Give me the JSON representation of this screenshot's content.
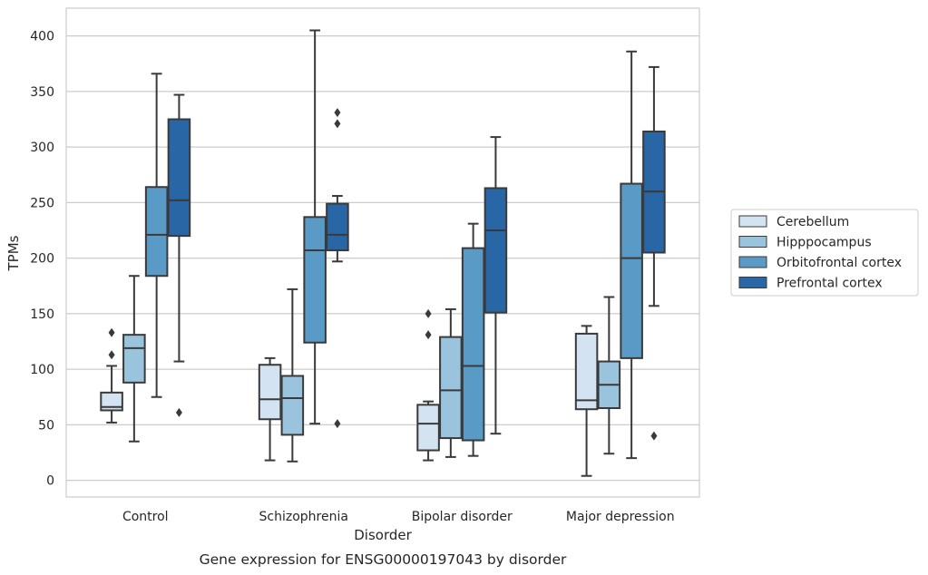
{
  "chart_data": {
    "type": "box",
    "xlabel": "Disorder",
    "ylabel": "TPMs",
    "caption": "Gene expression for ENSG00000197043 by disorder",
    "ylim": [
      -15,
      425
    ],
    "yticks": [
      0,
      50,
      100,
      150,
      200,
      250,
      300,
      350,
      400
    ],
    "grid": "horizontal",
    "legend_position": "right",
    "categories": [
      "Control",
      "Schizophrenia",
      "Bipolar disorder",
      "Major depression"
    ],
    "series": [
      {
        "name": "Cerebellum",
        "color": "#d3e3f1",
        "boxes": [
          {
            "whisker_low": 52,
            "q1": 63,
            "median": 66,
            "q3": 79,
            "whisker_high": 103,
            "outliers": [
              113,
              133
            ]
          },
          {
            "whisker_low": 18,
            "q1": 55,
            "median": 73,
            "q3": 104,
            "whisker_high": 110,
            "outliers": []
          },
          {
            "whisker_low": 18,
            "q1": 27,
            "median": 51,
            "q3": 68,
            "whisker_high": 71,
            "outliers": [
              131,
              150
            ]
          },
          {
            "whisker_low": 4,
            "q1": 64,
            "median": 72,
            "q3": 132,
            "whisker_high": 139,
            "outliers": []
          }
        ]
      },
      {
        "name": "Hipppocampus",
        "color": "#9ac3de",
        "boxes": [
          {
            "whisker_low": 35,
            "q1": 88,
            "median": 119,
            "q3": 131,
            "whisker_high": 184,
            "outliers": []
          },
          {
            "whisker_low": 17,
            "q1": 41,
            "median": 74,
            "q3": 94,
            "whisker_high": 172,
            "outliers": []
          },
          {
            "whisker_low": 21,
            "q1": 38,
            "median": 81,
            "q3": 129,
            "whisker_high": 154,
            "outliers": []
          },
          {
            "whisker_low": 24,
            "q1": 65,
            "median": 86,
            "q3": 107,
            "whisker_high": 165,
            "outliers": []
          }
        ]
      },
      {
        "name": "Orbitofrontal cortex",
        "color": "#5a9ac7",
        "boxes": [
          {
            "whisker_low": 75,
            "q1": 184,
            "median": 221,
            "q3": 264,
            "whisker_high": 366,
            "outliers": []
          },
          {
            "whisker_low": 51,
            "q1": 124,
            "median": 207,
            "q3": 237,
            "whisker_high": 405,
            "outliers": []
          },
          {
            "whisker_low": 22,
            "q1": 36,
            "median": 103,
            "q3": 209,
            "whisker_high": 231,
            "outliers": []
          },
          {
            "whisker_low": 20,
            "q1": 110,
            "median": 200,
            "q3": 267,
            "whisker_high": 386,
            "outliers": []
          }
        ]
      },
      {
        "name": "Prefrontal cortex",
        "color": "#2866a6",
        "boxes": [
          {
            "whisker_low": 107,
            "q1": 220,
            "median": 252,
            "q3": 325,
            "whisker_high": 347,
            "outliers": [
              61
            ]
          },
          {
            "whisker_low": 197,
            "q1": 207,
            "median": 221,
            "q3": 249,
            "whisker_high": 256,
            "outliers": [
              51,
              321,
              331
            ]
          },
          {
            "whisker_low": 42,
            "q1": 151,
            "median": 225,
            "q3": 263,
            "whisker_high": 309,
            "outliers": []
          },
          {
            "whisker_low": 157,
            "q1": 205,
            "median": 260,
            "q3": 314,
            "whisker_high": 372,
            "outliers": [
              40
            ]
          }
        ]
      }
    ]
  }
}
